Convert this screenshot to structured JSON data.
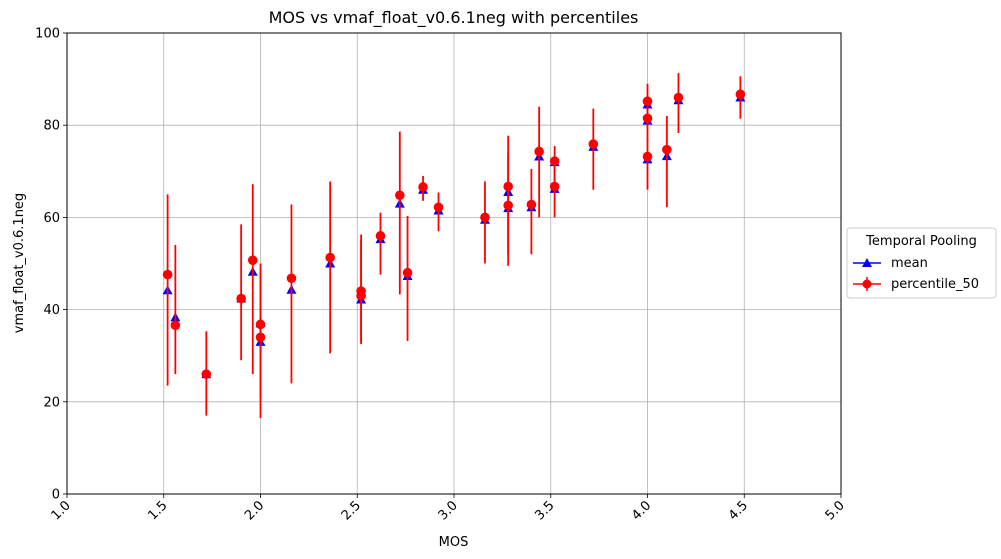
{
  "chart_data": {
    "type": "scatter",
    "title": "MOS vs vmaf_float_v0.6.1neg with percentiles",
    "xlabel": "MOS",
    "ylabel": "vmaf_float_v0.6.1neg",
    "xlim": [
      1.0,
      5.0
    ],
    "ylim": [
      0,
      100
    ],
    "x_ticks": [
      "1.0",
      "1.5",
      "2.0",
      "2.5",
      "3.0",
      "3.5",
      "4.0",
      "4.5",
      "5.0"
    ],
    "y_ticks": [
      "0",
      "20",
      "40",
      "60",
      "80",
      "100"
    ],
    "grid": true,
    "legend": {
      "title": "Temporal Pooling",
      "placement": "center-right outside"
    },
    "series": [
      {
        "name": "mean",
        "marker": "triangle",
        "color": "#0000ff",
        "points": [
          {
            "x": 1.52,
            "y": 44.2
          },
          {
            "x": 1.56,
            "y": 38.3
          },
          {
            "x": 1.72,
            "y": 26.0
          },
          {
            "x": 1.9,
            "y": 42.4
          },
          {
            "x": 1.96,
            "y": 48.2
          },
          {
            "x": 2.0,
            "y": 33.0
          },
          {
            "x": 2.0,
            "y": 37.0
          },
          {
            "x": 2.16,
            "y": 44.3
          },
          {
            "x": 2.36,
            "y": 50.0
          },
          {
            "x": 2.52,
            "y": 42.2
          },
          {
            "x": 2.52,
            "y": 43.5
          },
          {
            "x": 2.62,
            "y": 55.3
          },
          {
            "x": 2.72,
            "y": 63.0
          },
          {
            "x": 2.76,
            "y": 47.3
          },
          {
            "x": 2.84,
            "y": 66.0
          },
          {
            "x": 2.92,
            "y": 61.5
          },
          {
            "x": 3.16,
            "y": 59.5
          },
          {
            "x": 3.28,
            "y": 62.0
          },
          {
            "x": 3.28,
            "y": 65.5
          },
          {
            "x": 3.4,
            "y": 62.2
          },
          {
            "x": 3.44,
            "y": 73.2
          },
          {
            "x": 3.52,
            "y": 66.2
          },
          {
            "x": 3.52,
            "y": 72.0
          },
          {
            "x": 3.72,
            "y": 75.3
          },
          {
            "x": 4.0,
            "y": 72.6
          },
          {
            "x": 4.0,
            "y": 81.0
          },
          {
            "x": 4.0,
            "y": 84.5
          },
          {
            "x": 4.1,
            "y": 73.3
          },
          {
            "x": 4.16,
            "y": 85.4
          },
          {
            "x": 4.48,
            "y": 86.0
          }
        ]
      },
      {
        "name": "percentile_50",
        "marker": "circle",
        "color": "#ff0000",
        "points": [
          {
            "x": 1.52,
            "y": 47.6,
            "low": 23.5,
            "high": 65.0
          },
          {
            "x": 1.56,
            "y": 36.6,
            "low": 26.0,
            "high": 54.0
          },
          {
            "x": 1.72,
            "y": 26.0,
            "low": 17.0,
            "high": 35.3
          },
          {
            "x": 1.9,
            "y": 42.4,
            "low": 29.0,
            "high": 58.5
          },
          {
            "x": 1.96,
            "y": 50.7,
            "low": 26.0,
            "high": 67.2
          },
          {
            "x": 2.0,
            "y": 34.0,
            "low": 16.5,
            "high": 50.0
          },
          {
            "x": 2.0,
            "y": 36.8,
            "low": 21.0,
            "high": 48.0
          },
          {
            "x": 2.16,
            "y": 46.8,
            "low": 24.0,
            "high": 62.8
          },
          {
            "x": 2.36,
            "y": 51.3,
            "low": 30.5,
            "high": 67.8
          },
          {
            "x": 2.52,
            "y": 43.0,
            "low": 32.5,
            "high": 56.3
          },
          {
            "x": 2.52,
            "y": 44.0,
            "low": 33.0,
            "high": 55.0
          },
          {
            "x": 2.62,
            "y": 56.0,
            "low": 47.6,
            "high": 61.0
          },
          {
            "x": 2.72,
            "y": 64.8,
            "low": 43.3,
            "high": 78.6
          },
          {
            "x": 2.76,
            "y": 48.0,
            "low": 33.2,
            "high": 60.3
          },
          {
            "x": 2.84,
            "y": 66.6,
            "low": 63.6,
            "high": 69.0
          },
          {
            "x": 2.92,
            "y": 62.2,
            "low": 57.0,
            "high": 65.4
          },
          {
            "x": 3.16,
            "y": 60.0,
            "low": 50.0,
            "high": 67.8
          },
          {
            "x": 3.28,
            "y": 62.6,
            "low": 52.0,
            "high": 74.0
          },
          {
            "x": 3.28,
            "y": 66.7,
            "low": 49.5,
            "high": 77.7
          },
          {
            "x": 3.4,
            "y": 62.8,
            "low": 52.0,
            "high": 70.5
          },
          {
            "x": 3.44,
            "y": 74.3,
            "low": 60.0,
            "high": 84.0
          },
          {
            "x": 3.52,
            "y": 66.7,
            "low": 60.0,
            "high": 72.5
          },
          {
            "x": 3.52,
            "y": 72.2,
            "low": 66.0,
            "high": 75.5
          },
          {
            "x": 3.72,
            "y": 75.9,
            "low": 66.0,
            "high": 83.6
          },
          {
            "x": 4.0,
            "y": 73.2,
            "low": 66.0,
            "high": 77.0
          },
          {
            "x": 4.0,
            "y": 81.5,
            "low": 76.5,
            "high": 84.0
          },
          {
            "x": 4.0,
            "y": 85.2,
            "low": 80.0,
            "high": 89.0
          },
          {
            "x": 4.1,
            "y": 74.7,
            "low": 62.2,
            "high": 82.0
          },
          {
            "x": 4.16,
            "y": 86.0,
            "low": 78.3,
            "high": 91.3
          },
          {
            "x": 4.48,
            "y": 86.7,
            "low": 81.4,
            "high": 90.6
          }
        ]
      }
    ]
  }
}
